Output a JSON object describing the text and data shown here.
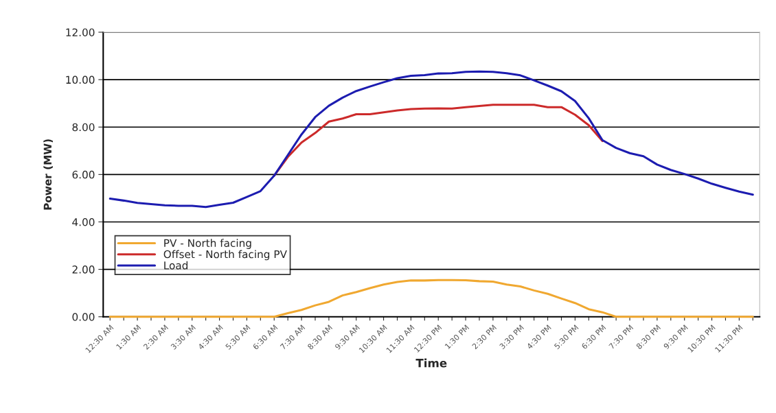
{
  "chart_data": {
    "type": "line",
    "xlabel": "Time",
    "ylabel": "Power (MW)",
    "categories": [
      "12:30 AM",
      null,
      "1:30 AM",
      null,
      "2:30 AM",
      null,
      "3:30 AM",
      null,
      "4:30 AM",
      null,
      "5:30 AM",
      null,
      "6:30 AM",
      null,
      "7:30 AM",
      null,
      "8:30 AM",
      null,
      "9:30 AM",
      null,
      "10:30 AM",
      null,
      "11:30 AM",
      null,
      "12:30 PM",
      null,
      "1:30 PM",
      null,
      "2:30 PM",
      null,
      "3:30 PM",
      null,
      "4:30 PM",
      null,
      "5:30 PM",
      null,
      "6:30 PM",
      null,
      "7:30 PM",
      null,
      "8:30 PM",
      null,
      "9:30 PM",
      null,
      "10:30 PM",
      null,
      "11:30 PM",
      null
    ],
    "series": [
      {
        "name": "PV - North facing",
        "color": "#f0a830",
        "values": [
          0,
          0,
          0,
          0,
          0,
          0,
          0,
          0,
          0,
          0,
          0,
          0,
          0,
          0.15,
          0.29,
          0.48,
          0.63,
          0.9,
          1.04,
          1.21,
          1.36,
          1.47,
          1.53,
          1.53,
          1.55,
          1.55,
          1.54,
          1.5,
          1.48,
          1.36,
          1.28,
          1.11,
          0.97,
          0.77,
          0.58,
          0.32,
          0.19,
          0,
          0,
          0,
          0,
          0,
          0,
          0,
          0,
          0,
          0,
          0
        ]
      },
      {
        "name": "Offset - North facing PV",
        "color": "#cc2a2a",
        "values": [
          null,
          null,
          null,
          null,
          null,
          null,
          null,
          null,
          null,
          null,
          null,
          null,
          5.95,
          6.74,
          7.35,
          7.75,
          8.23,
          8.36,
          8.54,
          8.54,
          8.62,
          8.7,
          8.76,
          8.78,
          8.79,
          8.78,
          8.84,
          8.89,
          8.94,
          8.94,
          8.94,
          8.94,
          8.84,
          8.84,
          8.52,
          8.08,
          7.41,
          null,
          null,
          null,
          null,
          null,
          null,
          null,
          null,
          null,
          null,
          null
        ]
      },
      {
        "name": "Load",
        "color": "#1c1cb0",
        "values": [
          4.98,
          4.9,
          4.8,
          4.75,
          4.7,
          4.68,
          4.68,
          4.63,
          4.72,
          4.81,
          5.05,
          5.3,
          5.95,
          6.82,
          7.69,
          8.42,
          8.9,
          9.24,
          9.52,
          9.71,
          9.89,
          10.06,
          10.16,
          10.19,
          10.26,
          10.27,
          10.33,
          10.34,
          10.33,
          10.27,
          10.18,
          9.97,
          9.75,
          9.51,
          9.1,
          8.37,
          7.45,
          7.12,
          6.9,
          6.77,
          6.42,
          6.19,
          6.02,
          5.83,
          5.61,
          5.44,
          5.28,
          5.15
        ]
      }
    ],
    "ylim": [
      0,
      12
    ],
    "yticks": [
      {
        "value": 0,
        "label": "0.00"
      },
      {
        "value": 2,
        "label": "2.00"
      },
      {
        "value": 4,
        "label": "4.00"
      },
      {
        "value": 6,
        "label": "6.00"
      },
      {
        "value": 8,
        "label": "8.00"
      },
      {
        "value": 10,
        "label": "10.00"
      },
      {
        "value": 12,
        "label": "12.00"
      }
    ],
    "grid": "y",
    "legend": "bottom left",
    "marker": "none",
    "line_style": "solid"
  }
}
